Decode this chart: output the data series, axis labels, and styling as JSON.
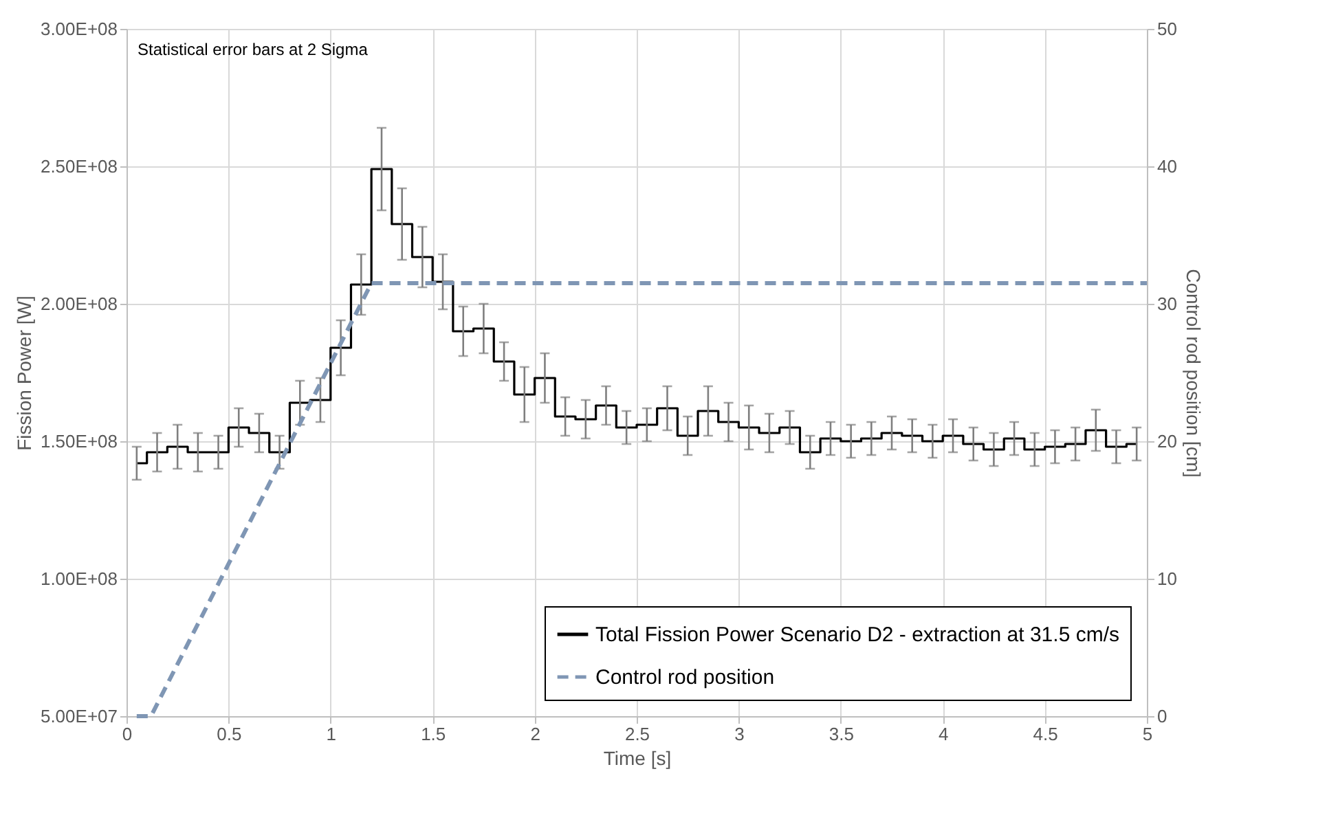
{
  "chart_data": {
    "type": "line",
    "xlabel": "Time [s]",
    "ylabel": "Fission Power [W]",
    "y2label": "Control rod position [cm]",
    "annotations": [
      "Statistical error bars at 2 Sigma"
    ],
    "xlim": [
      0,
      5
    ],
    "xticks": [
      0,
      0.5,
      1,
      1.5,
      2,
      2.5,
      3,
      3.5,
      4,
      4.5,
      5
    ],
    "ylim": [
      50000000,
      300000000
    ],
    "yticks": [
      {
        "value": 50000000,
        "label": "5.00E+07"
      },
      {
        "value": 100000000,
        "label": "1.00E+08"
      },
      {
        "value": 150000000,
        "label": "1.50E+08"
      },
      {
        "value": 200000000,
        "label": "2.00E+08"
      },
      {
        "value": 250000000,
        "label": "2.50E+08"
      },
      {
        "value": 300000000,
        "label": "3.00E+08"
      }
    ],
    "y2lim": [
      0,
      50
    ],
    "y2ticks": [
      0,
      10,
      20,
      30,
      40,
      50
    ],
    "grid": true,
    "legend": "bottom right",
    "series": [
      {
        "name": "Total Fission Power Scenario D2 - extraction at 31.5 cm/s",
        "type": "step",
        "color": "#000000",
        "line_style": "solid",
        "x": [
          0.05,
          0.15,
          0.25,
          0.35,
          0.45,
          0.55,
          0.65,
          0.75,
          0.85,
          0.95,
          1.05,
          1.15,
          1.25,
          1.35,
          1.45,
          1.55,
          1.65,
          1.75,
          1.85,
          1.95,
          2.05,
          2.15,
          2.25,
          2.35,
          2.45,
          2.55,
          2.65,
          2.75,
          2.85,
          2.95,
          3.05,
          3.15,
          3.25,
          3.35,
          3.45,
          3.55,
          3.65,
          3.75,
          3.85,
          3.95,
          4.05,
          4.15,
          4.25,
          4.35,
          4.45,
          4.55,
          4.65,
          4.75,
          4.85,
          4.95
        ],
        "values": [
          142000000,
          146000000,
          148000000,
          146000000,
          146000000,
          155000000,
          153000000,
          146000000,
          164000000,
          165000000,
          184000000,
          207000000,
          249000000,
          229000000,
          217000000,
          208000000,
          190000000,
          191000000,
          179000000,
          167000000,
          173000000,
          159000000,
          158000000,
          163000000,
          155000000,
          156000000,
          162000000,
          152000000,
          161000000,
          157000000,
          155000000,
          153000000,
          155000000,
          146000000,
          151000000,
          150000000,
          151000000,
          153000000,
          152000000,
          150000000,
          152000000,
          149000000,
          147000000,
          151000000,
          147000000,
          148000000,
          149000000,
          154000000,
          148000000,
          149000000
        ],
        "errors": [
          6000000,
          7000000,
          8000000,
          7000000,
          6000000,
          7000000,
          7000000,
          6000000,
          8000000,
          8000000,
          10000000,
          11000000,
          15000000,
          13000000,
          11000000,
          10000000,
          9000000,
          9000000,
          7000000,
          10000000,
          9000000,
          7000000,
          7000000,
          7000000,
          6000000,
          6000000,
          8000000,
          7000000,
          9000000,
          7000000,
          8000000,
          7000000,
          6000000,
          6000000,
          6000000,
          6000000,
          6000000,
          6000000,
          6000000,
          6000000,
          6000000,
          6000000,
          6000000,
          6000000,
          6000000,
          6000000,
          6000000,
          7500000,
          6000000,
          6000000
        ]
      },
      {
        "name": "Control rod position",
        "type": "line",
        "axis": "y2",
        "color": "#7f96b4",
        "line_style": "dashed",
        "x": [
          0.05,
          0.12,
          1.2,
          5
        ],
        "values": [
          0,
          0,
          31.5,
          31.5
        ]
      }
    ]
  }
}
